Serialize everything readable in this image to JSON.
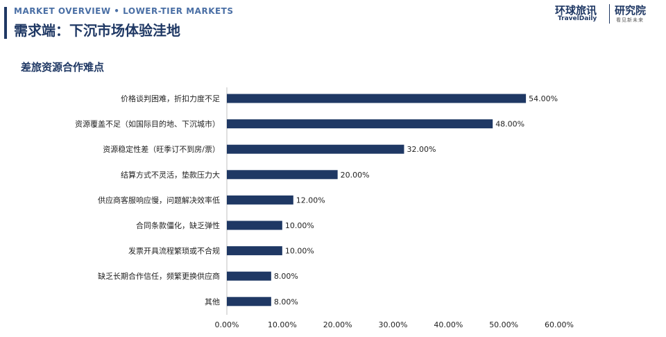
{
  "header": {
    "overview": "MARKET OVERVIEW • LOWER-TIER MARKETS",
    "title": "需求端：下沉市场体验洼地"
  },
  "logo": {
    "brand_cn": "环球旅讯",
    "brand_en": "TravelDaily",
    "institute": "研究院",
    "tagline": "看见新未来"
  },
  "section": {
    "title": "差旅资源合作难点"
  },
  "colors": {
    "bar": "#1f3864",
    "accent": "#1f3864"
  },
  "chart_data": {
    "type": "bar",
    "orientation": "horizontal",
    "categories": [
      "价格谈判困难，折扣力度不足",
      "资源覆盖不足（如国际目的地、下沉城市）",
      "资源稳定性差（旺季订不到房/票）",
      "结算方式不灵活，垫款压力大",
      "供应商客服响应慢，问题解决效率低",
      "合同条款僵化，缺乏弹性",
      "发票开具流程繁琐或不合规",
      "缺乏长期合作信任，频繁更换供应商",
      "其他"
    ],
    "values": [
      54,
      48,
      32,
      20,
      12,
      10,
      10,
      8,
      8
    ],
    "value_labels": [
      "54.00%",
      "48.00%",
      "32.00%",
      "20.00%",
      "12.00%",
      "10.00%",
      "10.00%",
      "8.00%",
      "8.00%"
    ],
    "xlim": [
      0,
      60
    ],
    "xticks": [
      0,
      10,
      20,
      30,
      40,
      50,
      60
    ],
    "xtick_labels": [
      "0.00%",
      "10.00%",
      "20.00%",
      "30.00%",
      "40.00%",
      "50.00%",
      "60.00%"
    ],
    "grid": false,
    "legend": "none"
  }
}
